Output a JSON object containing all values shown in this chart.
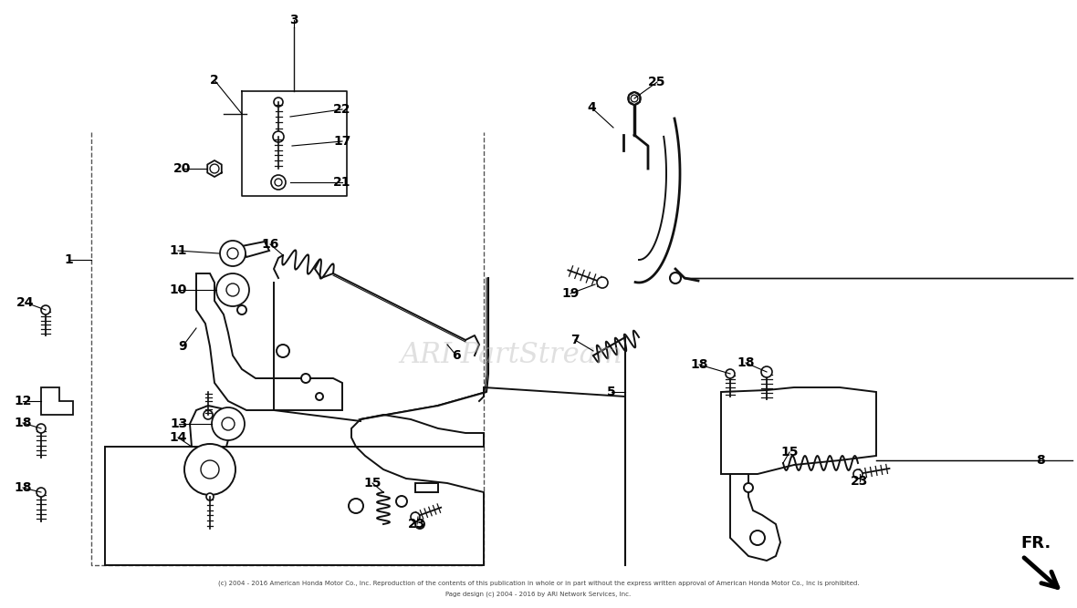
{
  "background_color": "#ffffff",
  "watermark": "ARI PartStream",
  "watermark_color": "#bbbbbb",
  "copyright_line1": "(c) 2004 - 2016 American Honda Motor Co., Inc. Reproduction of the contents of this publication in whole or in part without the express written approval of American Honda Motor Co., Inc is prohibited.",
  "copyright_line2": "Page design (c) 2004 - 2016 by ARI Network Services, Inc.",
  "fr_label": "FR.",
  "fig_width": 11.8,
  "fig_height": 6.67,
  "dpi": 100
}
